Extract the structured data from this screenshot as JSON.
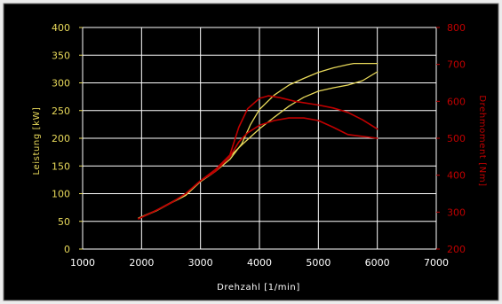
{
  "chart_data": {
    "type": "line",
    "title": "",
    "background": "#000000",
    "grid": true,
    "grid_color": "#ffffff",
    "x_axis": {
      "label": "Drehzahl [1/min]",
      "range": [
        1000,
        7000
      ],
      "ticks": [
        1000,
        2000,
        3000,
        4000,
        5000,
        6000,
        7000
      ],
      "color": "#ffffff"
    },
    "y_left": {
      "label": "Leistung [kW]",
      "range": [
        0,
        400
      ],
      "ticks": [
        0,
        50,
        100,
        150,
        200,
        250,
        300,
        350,
        400
      ],
      "color": "#e8d95a"
    },
    "y_right": {
      "label": "Drehmoment [Nm]",
      "range": [
        200,
        800
      ],
      "ticks": [
        200,
        300,
        400,
        500,
        600,
        700,
        800
      ],
      "color": "#c00000"
    },
    "series": [
      {
        "axis": "left",
        "color": "#e8d95a",
        "x": [
          1950,
          2250,
          2500,
          2750,
          3000,
          3250,
          3500,
          3700,
          3850,
          4000,
          4250,
          4500,
          4750,
          5000,
          5250,
          5500,
          5600,
          5800,
          6000
        ],
        "values": [
          56,
          70,
          84,
          99,
          122,
          140,
          162,
          190,
          225,
          252,
          278,
          296,
          308,
          319,
          327,
          333,
          335,
          335,
          335
        ]
      },
      {
        "axis": "left",
        "color": "#e8d95a",
        "x": [
          1950,
          2250,
          2500,
          2750,
          3000,
          3250,
          3500,
          3700,
          4000,
          4250,
          4500,
          4750,
          5000,
          5250,
          5500,
          5750,
          6000
        ],
        "values": [
          55,
          69,
          83,
          97,
          122,
          140,
          167,
          188,
          217,
          238,
          258,
          274,
          285,
          291,
          296,
          304,
          320
        ]
      },
      {
        "axis": "right",
        "color": "#c00000",
        "x": [
          1950,
          2250,
          2500,
          2750,
          3000,
          3250,
          3500,
          3650,
          3800,
          4000,
          4150,
          4350,
          4600,
          5000,
          5250,
          5500,
          5750,
          6000
        ],
        "values": [
          282,
          305,
          325,
          350,
          385,
          415,
          455,
          530,
          580,
          608,
          615,
          610,
          600,
          590,
          582,
          570,
          550,
          525
        ]
      },
      {
        "axis": "right",
        "color": "#c00000",
        "x": [
          1950,
          2250,
          2500,
          2750,
          3000,
          3250,
          3500,
          3650,
          3800,
          4000,
          4250,
          4500,
          4750,
          5000,
          5250,
          5500,
          5750,
          6000
        ],
        "values": [
          282,
          305,
          325,
          350,
          385,
          410,
          450,
          490,
          515,
          535,
          548,
          555,
          555,
          548,
          530,
          510,
          505,
          500
        ]
      }
    ]
  }
}
